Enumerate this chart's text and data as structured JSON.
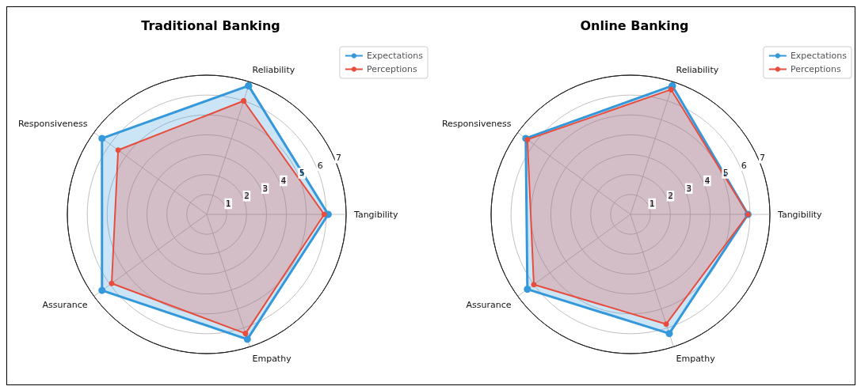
{
  "chart_data": [
    {
      "type": "radar",
      "title": "Traditional Banking",
      "categories": [
        "Reliability",
        "Tangibility",
        "Empathy",
        "Assurance",
        "Responsiveness"
      ],
      "ylim": [
        0,
        7
      ],
      "yticks": [
        1,
        2,
        3,
        4,
        5,
        6,
        7
      ],
      "grid": true,
      "legend": "top right",
      "marker": "circle",
      "series": [
        {
          "name": "Expectations",
          "color": "#3498db",
          "values": [
            6.8,
            6.1,
            6.6,
            6.5,
            6.5
          ]
        },
        {
          "name": "Perceptions",
          "color": "#e74c3c",
          "values": [
            6.0,
            5.9,
            6.3,
            5.9,
            5.5
          ]
        }
      ]
    },
    {
      "type": "radar",
      "title": "Online Banking",
      "categories": [
        "Reliability",
        "Tangibility",
        "Empathy",
        "Assurance",
        "Responsiveness"
      ],
      "ylim": [
        0,
        7
      ],
      "yticks": [
        1,
        2,
        3,
        4,
        5,
        6,
        7
      ],
      "grid": true,
      "legend": "top right",
      "marker": "circle",
      "series": [
        {
          "name": "Expectations",
          "color": "#3498db",
          "values": [
            6.8,
            5.9,
            6.3,
            6.4,
            6.5
          ]
        },
        {
          "name": "Perceptions",
          "color": "#e74c3c",
          "values": [
            6.6,
            5.9,
            5.8,
            6.0,
            6.4
          ]
        }
      ]
    }
  ]
}
